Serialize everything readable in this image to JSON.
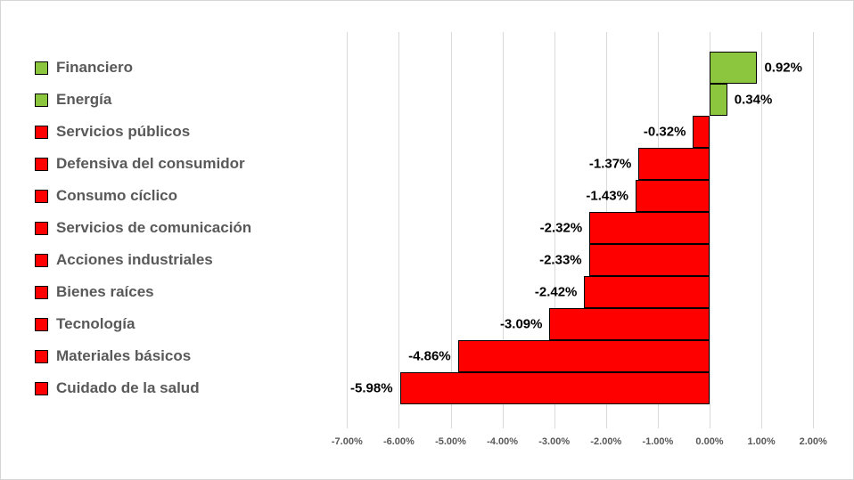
{
  "chart_data": {
    "type": "bar",
    "orientation": "horizontal",
    "title": "",
    "xlabel": "",
    "ylabel": "",
    "grid": true,
    "legend_position": "none",
    "categories": [
      "Financiero",
      "Energía",
      "Servicios públicos",
      "Defensiva del consumidor",
      "Consumo cíclico",
      "Servicios de comunicación",
      "Acciones industriales",
      "Bienes raíces",
      "Tecnología",
      "Materiales básicos",
      "Cuidado de la salud"
    ],
    "values": [
      0.92,
      0.34,
      -0.32,
      -1.37,
      -1.43,
      -2.32,
      -2.33,
      -2.42,
      -3.09,
      -4.86,
      -5.98
    ],
    "value_labels": [
      "0.92%",
      "0.34%",
      "-0.32%",
      "-1.37%",
      "-1.43%",
      "-2.32%",
      "-2.33%",
      "-2.42%",
      "-3.09%",
      "-4.86%",
      "-5.98%"
    ],
    "xlim": [
      -7,
      2
    ],
    "x_tick_values": [
      -7,
      -6,
      -5,
      -4,
      -3,
      -2,
      -1,
      0,
      1,
      2
    ],
    "x_tick_labels": [
      "-7.00%",
      "-6.00%",
      "-5.00%",
      "-4.00%",
      "-3.00%",
      "-2.00%",
      "-1.00%",
      "0.00%",
      "1.00%",
      "2.00%"
    ],
    "colors": {
      "positive": "#8cc63e",
      "negative": "#ff0000",
      "bar_border": "#000000",
      "gridline": "#d9d9d9",
      "category_text": "#595959",
      "value_text": "#000000",
      "tick_text": "#595959"
    }
  }
}
